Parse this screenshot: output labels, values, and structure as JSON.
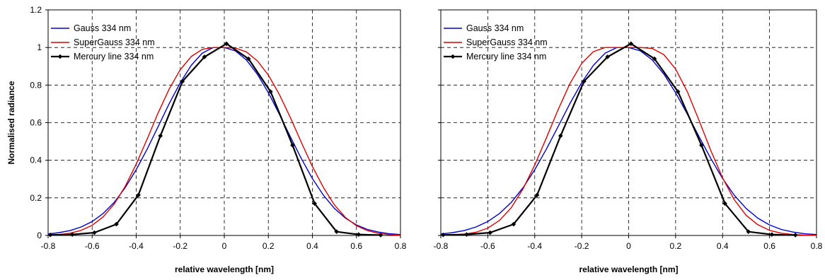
{
  "chart_data": [
    {
      "type": "line",
      "title": "",
      "xlabel": "relative wavelength [nm]",
      "ylabel": "Normalised radiance",
      "xlim": [
        -0.8,
        0.8
      ],
      "ylim": [
        0,
        1.2
      ],
      "xticks": [
        "-0.8",
        "-0.6",
        "-0.4",
        "-0.2",
        "0",
        "0.2",
        "0.4",
        "0.6",
        "0.8"
      ],
      "yticks": [
        "0",
        "0.2",
        "0.4",
        "0.6",
        "0.8",
        "1",
        "1.2"
      ],
      "grid": true,
      "legend_position": "top-left",
      "series": [
        {
          "name": "Gauss 334 nm",
          "color": "#0000cc",
          "marker": "none",
          "x": [
            -0.8,
            -0.75,
            -0.7,
            -0.65,
            -0.6,
            -0.55,
            -0.5,
            -0.45,
            -0.4,
            -0.35,
            -0.3,
            -0.25,
            -0.2,
            -0.15,
            -0.1,
            -0.05,
            0,
            0.05,
            0.1,
            0.15,
            0.2,
            0.25,
            0.3,
            0.35,
            0.4,
            0.45,
            0.5,
            0.55,
            0.6,
            0.65,
            0.7,
            0.75,
            0.8
          ],
          "values": [
            0.008,
            0.015,
            0.026,
            0.045,
            0.074,
            0.117,
            0.176,
            0.254,
            0.35,
            0.46,
            0.58,
            0.702,
            0.813,
            0.905,
            0.97,
            1.0,
            1.0,
            0.982,
            0.934,
            0.858,
            0.759,
            0.645,
            0.525,
            0.409,
            0.303,
            0.214,
            0.144,
            0.092,
            0.056,
            0.032,
            0.018,
            0.009,
            0.005
          ]
        },
        {
          "name": "SuperGauss 334 nm",
          "color": "#dd0000",
          "marker": "none",
          "x": [
            -0.8,
            -0.75,
            -0.7,
            -0.65,
            -0.6,
            -0.55,
            -0.5,
            -0.45,
            -0.4,
            -0.35,
            -0.3,
            -0.25,
            -0.2,
            -0.15,
            -0.1,
            -0.05,
            0,
            0.05,
            0.1,
            0.15,
            0.2,
            0.25,
            0.3,
            0.35,
            0.4,
            0.45,
            0.5,
            0.55,
            0.6,
            0.65,
            0.7,
            0.75,
            0.8
          ],
          "values": [
            0.002,
            0.005,
            0.012,
            0.027,
            0.054,
            0.099,
            0.167,
            0.261,
            0.379,
            0.514,
            0.653,
            0.78,
            0.882,
            0.952,
            0.99,
            1.0,
            1.0,
            0.997,
            0.977,
            0.929,
            0.853,
            0.75,
            0.627,
            0.495,
            0.367,
            0.255,
            0.163,
            0.096,
            0.052,
            0.026,
            0.011,
            0.004,
            0.002
          ]
        },
        {
          "name": "Mercury line 334 nm",
          "color": "#000000",
          "marker": "diamond",
          "x": [
            -0.79,
            -0.69,
            -0.59,
            -0.49,
            -0.39,
            -0.29,
            -0.19,
            -0.09,
            0.01,
            0.11,
            0.21,
            0.31,
            0.41,
            0.51,
            0.61,
            0.71
          ],
          "values": [
            0.003,
            0.005,
            0.015,
            0.06,
            0.215,
            0.53,
            0.82,
            0.95,
            1.02,
            0.94,
            0.765,
            0.48,
            0.17,
            0.02,
            0.005,
            0.002
          ]
        }
      ]
    },
    {
      "type": "line",
      "title": "",
      "xlabel": "relative wavelength [nm]",
      "ylabel": "",
      "xlim": [
        -0.8,
        0.8
      ],
      "ylim": [
        0,
        1.2
      ],
      "xticks": [
        "-0.8",
        "-0.6",
        "-0.4",
        "-0.2",
        "0",
        "0.2",
        "0.4",
        "0.6",
        "0.8"
      ],
      "yticks": [],
      "grid": true,
      "legend_position": "top-left",
      "series": [
        {
          "name": "Gauss 334 nm",
          "color": "#0000cc",
          "marker": "none",
          "x": [
            -0.8,
            -0.75,
            -0.7,
            -0.65,
            -0.6,
            -0.55,
            -0.5,
            -0.45,
            -0.4,
            -0.35,
            -0.3,
            -0.25,
            -0.2,
            -0.15,
            -0.1,
            -0.05,
            0,
            0.05,
            0.1,
            0.15,
            0.2,
            0.25,
            0.3,
            0.35,
            0.4,
            0.45,
            0.5,
            0.55,
            0.6,
            0.65,
            0.7,
            0.75,
            0.8
          ],
          "values": [
            0.008,
            0.015,
            0.026,
            0.045,
            0.074,
            0.117,
            0.176,
            0.254,
            0.35,
            0.46,
            0.58,
            0.702,
            0.813,
            0.905,
            0.97,
            1.0,
            1.0,
            0.982,
            0.934,
            0.858,
            0.759,
            0.645,
            0.525,
            0.409,
            0.303,
            0.214,
            0.144,
            0.092,
            0.056,
            0.032,
            0.018,
            0.009,
            0.005
          ]
        },
        {
          "name": "SuperGauss 334 nm",
          "color": "#dd0000",
          "marker": "none",
          "x": [
            -0.8,
            -0.75,
            -0.7,
            -0.65,
            -0.6,
            -0.55,
            -0.5,
            -0.45,
            -0.4,
            -0.35,
            -0.3,
            -0.25,
            -0.2,
            -0.15,
            -0.1,
            -0.05,
            0,
            0.05,
            0.1,
            0.15,
            0.2,
            0.25,
            0.3,
            0.35,
            0.4,
            0.45,
            0.5,
            0.55,
            0.6,
            0.65,
            0.7,
            0.75,
            0.8
          ],
          "values": [
            0.001,
            0.003,
            0.007,
            0.017,
            0.039,
            0.08,
            0.148,
            0.248,
            0.375,
            0.52,
            0.67,
            0.808,
            0.915,
            0.978,
            1.0,
            1.0,
            1.0,
            1.0,
            0.995,
            0.962,
            0.885,
            0.764,
            0.611,
            0.451,
            0.306,
            0.19,
            0.108,
            0.057,
            0.027,
            0.012,
            0.005,
            0.002,
            0.001
          ]
        },
        {
          "name": "Mercury line 334 nm",
          "color": "#000000",
          "marker": "diamond",
          "x": [
            -0.79,
            -0.69,
            -0.59,
            -0.49,
            -0.39,
            -0.29,
            -0.19,
            -0.09,
            0.01,
            0.11,
            0.21,
            0.31,
            0.41,
            0.51,
            0.61,
            0.71
          ],
          "values": [
            0.003,
            0.005,
            0.015,
            0.06,
            0.215,
            0.53,
            0.82,
            0.95,
            1.02,
            0.94,
            0.765,
            0.48,
            0.17,
            0.02,
            0.005,
            0.002
          ]
        }
      ]
    }
  ]
}
